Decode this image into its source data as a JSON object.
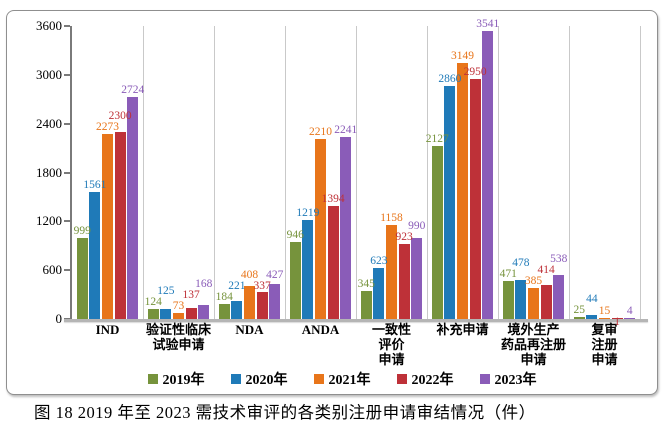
{
  "caption": "图 18 2019 年至 2023 需技术审评的各类别注册申请审结情况（件）",
  "chart_data": {
    "type": "bar",
    "title": "",
    "xlabel": "",
    "ylabel": "",
    "ylim": [
      0,
      3600
    ],
    "yticks": [
      0,
      600,
      1200,
      1800,
      2400,
      3000,
      3600
    ],
    "grid": "vertical category separators only",
    "legend_position": "bottom",
    "categories": [
      [
        "IND"
      ],
      [
        "验证性临床",
        "试验申请"
      ],
      [
        "NDA"
      ],
      [
        "ANDA"
      ],
      [
        "一致性",
        "评价",
        "申请"
      ],
      [
        "补充申请"
      ],
      [
        "境外生产",
        "药品再注册",
        "申请"
      ],
      [
        "复审",
        "注册",
        "申请"
      ]
    ],
    "series": [
      {
        "name": "2019年",
        "color": "#76933C",
        "values": [
          999,
          124,
          184,
          946,
          345,
          2127,
          471,
          25
        ]
      },
      {
        "name": "2020年",
        "color": "#1F7AB8",
        "values": [
          1561,
          125,
          221,
          1219,
          623,
          2860,
          478,
          44
        ]
      },
      {
        "name": "2021年",
        "color": "#E8751A",
        "values": [
          2273,
          73,
          408,
          2210,
          1158,
          3149,
          385,
          15
        ]
      },
      {
        "name": "2022年",
        "color": "#BE3138",
        "values": [
          2300,
          137,
          337,
          1394,
          923,
          2950,
          414,
          1
        ]
      },
      {
        "name": "2023年",
        "color": "#8A5CB8",
        "values": [
          2724,
          168,
          427,
          2241,
          990,
          3541,
          538,
          4
        ]
      }
    ]
  }
}
